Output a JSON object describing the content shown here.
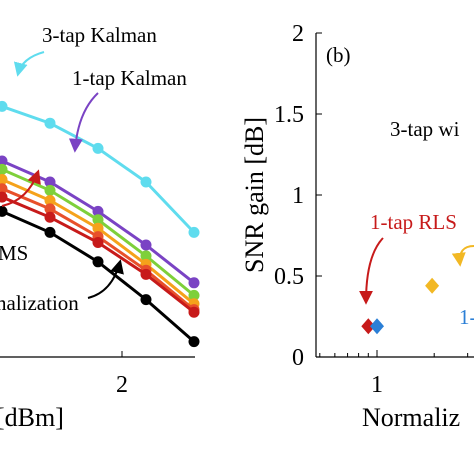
{
  "colors": {
    "cyan": "#5fdcee",
    "purple": "#7a43c4",
    "green": "#7ed03a",
    "orange": "#f5a21b",
    "redorange": "#e8502a",
    "darkred": "#c71a1a",
    "black": "#000000",
    "blue": "#2b7fd6",
    "gold": "#f2b824"
  },
  "chart_data": [
    {
      "type": "line",
      "panel": "left (cropped)",
      "xlabel_fragment": "[dBm]",
      "x_tick_labels": [
        "2"
      ],
      "annotations": [
        {
          "text": "3-tap Kalman",
          "color": "cyan"
        },
        {
          "text": "1-tap Kalman",
          "color": "purple"
        },
        {
          "text": "MS",
          "color": "darkred"
        },
        {
          "text": "nalization",
          "color": "black"
        }
      ],
      "x": [
        -0.2,
        0.2,
        0.6,
        1.0,
        1.4,
        1.8,
        2.2,
        2.6
      ],
      "series": [
        {
          "color": "cyan",
          "values": [
            3.2,
            3.15,
            3.05,
            2.9,
            2.7,
            2.4,
            2.0,
            1.4
          ]
        },
        {
          "color": "purple",
          "values": [
            2.55,
            2.5,
            2.4,
            2.25,
            2.0,
            1.65,
            1.25,
            0.8
          ]
        },
        {
          "color": "green",
          "values": [
            2.48,
            2.42,
            2.32,
            2.15,
            1.9,
            1.55,
            1.12,
            0.65
          ]
        },
        {
          "color": "orange",
          "values": [
            2.35,
            2.3,
            2.2,
            2.03,
            1.78,
            1.45,
            1.02,
            0.55
          ]
        },
        {
          "color": "redorange",
          "values": [
            2.25,
            2.18,
            2.08,
            1.92,
            1.68,
            1.35,
            0.95,
            0.48
          ]
        },
        {
          "color": "darkred",
          "values": [
            2.15,
            2.08,
            1.98,
            1.82,
            1.58,
            1.28,
            0.9,
            0.45
          ]
        },
        {
          "color": "black",
          "values": [
            2.05,
            1.98,
            1.85,
            1.65,
            1.4,
            1.05,
            0.6,
            0.1
          ]
        }
      ]
    },
    {
      "type": "scatter",
      "panel": "right (cropped)",
      "panel_label": "(b)",
      "ylabel": "SNR gain [dB]",
      "xlabel_fragment": "Normaliz",
      "ylim": [
        0,
        2
      ],
      "y_ticks": [
        "0",
        "0.5",
        "1",
        "1.5",
        "2"
      ],
      "x_tick_labels": [
        "1"
      ],
      "x_scale": "log",
      "annotations": [
        {
          "text": "3-tap wi",
          "color": "black"
        },
        {
          "text": "1-tap RLS",
          "color": "darkred"
        },
        {
          "text": "1-",
          "color": "blue"
        }
      ],
      "points": [
        {
          "x": 0.9,
          "y": 0.19,
          "color": "darkred",
          "marker": "diamond"
        },
        {
          "x": 1.0,
          "y": 0.19,
          "color": "blue",
          "marker": "diamond"
        },
        {
          "x": 1.95,
          "y": 0.44,
          "color": "gold",
          "marker": "diamond"
        }
      ]
    }
  ]
}
